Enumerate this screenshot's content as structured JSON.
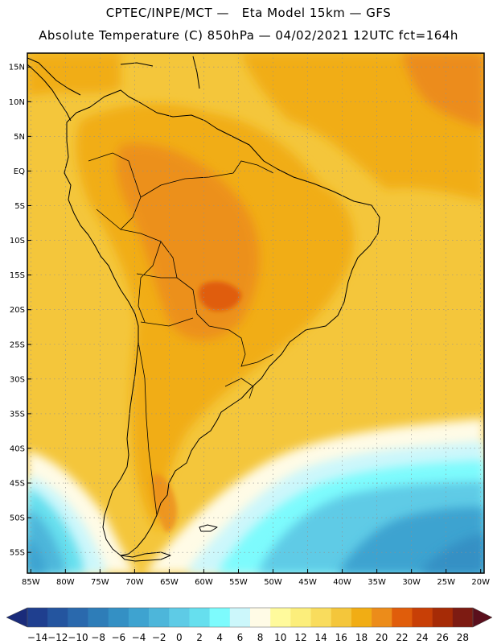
{
  "header": {
    "line1": "CPTEC/INPE/MCT —   Eta Model 15km — GFS",
    "line2": "Absolute Temperature (C) 850hPa — 04/02/2021 12UTC fct=164h"
  },
  "map": {
    "lat_labels": [
      "15N",
      "10N",
      "5N",
      "EQ",
      "5S",
      "10S",
      "15S",
      "20S",
      "25S",
      "30S",
      "35S",
      "40S",
      "45S",
      "50S",
      "55S"
    ],
    "lon_labels": [
      "85W",
      "80W",
      "75W",
      "70W",
      "65W",
      "60W",
      "55W",
      "50W",
      "45W",
      "40W",
      "35W",
      "30W",
      "25W",
      "20W"
    ],
    "lat_values": [
      15,
      10,
      5,
      0,
      -5,
      -10,
      -15,
      -20,
      -25,
      -30,
      -35,
      -40,
      -45,
      -50,
      -55
    ],
    "lon_values": [
      -85,
      -80,
      -75,
      -70,
      -65,
      -60,
      -55,
      -50,
      -45,
      -40,
      -35,
      -30,
      -25,
      -20
    ],
    "extent": {
      "lon_min": -85.5,
      "lon_max": -19.5,
      "lat_min": -58,
      "lat_max": 17
    },
    "grid": true
  },
  "colorbar": {
    "labels": [
      "-14",
      "-12",
      "-10",
      "-8",
      "-6",
      "-4",
      "-2",
      "0",
      "2",
      "4",
      "6",
      "8",
      "10",
      "12",
      "14",
      "16",
      "18",
      "20",
      "22",
      "24",
      "26",
      "28"
    ],
    "colors": [
      "#1f3f8f",
      "#24559f",
      "#2a69ad",
      "#2e7db8",
      "#3490c4",
      "#3ea3d0",
      "#4db6da",
      "#5ecbe6",
      "#66dfee",
      "#7dfbfd",
      "#ccf7fb",
      "#fffbe6",
      "#fffa9c",
      "#fcee7b",
      "#f9dc5d",
      "#f4c63b",
      "#f1ad14",
      "#ec8c1a",
      "#e05d0b",
      "#c83f06",
      "#a62b06",
      "#7d1b12"
    ],
    "low_color": "#1a2b7a",
    "high_color": "#5a0f1c"
  }
}
